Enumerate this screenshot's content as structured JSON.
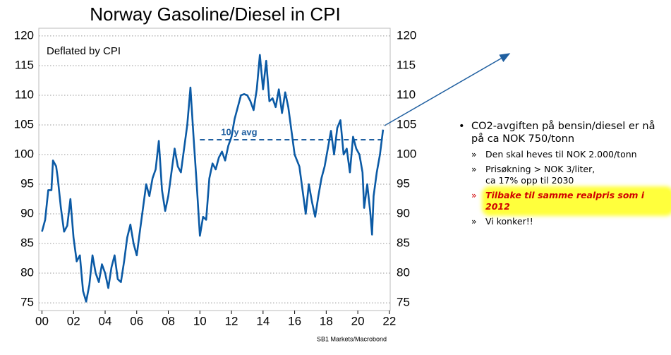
{
  "chart_data": {
    "type": "line",
    "title": "Norway Gasoline/Diesel in CPI",
    "subtitle": "Deflated by CPI",
    "source": "SB1 Markets/Macrobond",
    "x": [
      2000.0,
      2000.2,
      2000.4,
      2000.6,
      2000.7,
      2000.9,
      2001.0,
      2001.2,
      2001.4,
      2001.6,
      2001.8,
      2002.0,
      2002.2,
      2002.4,
      2002.6,
      2002.8,
      2003.0,
      2003.2,
      2003.4,
      2003.6,
      2003.8,
      2004.0,
      2004.2,
      2004.4,
      2004.6,
      2004.8,
      2005.0,
      2005.2,
      2005.4,
      2005.6,
      2005.8,
      2006.0,
      2006.2,
      2006.4,
      2006.6,
      2006.8,
      2007.0,
      2007.2,
      2007.4,
      2007.6,
      2007.8,
      2008.0,
      2008.2,
      2008.4,
      2008.6,
      2008.8,
      2009.0,
      2009.2,
      2009.4,
      2009.6,
      2009.8,
      2010.0,
      2010.2,
      2010.4,
      2010.6,
      2010.8,
      2011.0,
      2011.2,
      2011.4,
      2011.6,
      2011.8,
      2012.0,
      2012.2,
      2012.4,
      2012.6,
      2012.8,
      2013.0,
      2013.2,
      2013.4,
      2013.6,
      2013.8,
      2014.0,
      2014.2,
      2014.4,
      2014.6,
      2014.8,
      2015.0,
      2015.2,
      2015.4,
      2015.6,
      2015.8,
      2016.0,
      2016.3,
      2016.5,
      2016.7,
      2016.9,
      2017.1,
      2017.3,
      2017.5,
      2017.7,
      2017.9,
      2018.1,
      2018.3,
      2018.5,
      2018.7,
      2018.9,
      2019.1,
      2019.3,
      2019.5,
      2019.7,
      2019.9,
      2020.1,
      2020.3,
      2020.4,
      2020.6,
      2020.8,
      2020.9,
      2021.0,
      2021.2,
      2021.4,
      2021.6
    ],
    "series": [
      {
        "name": "Gasoline/Diesel",
        "color": "#0b5aa5",
        "values": [
          87,
          89,
          94,
          94,
          99,
          98,
          96,
          91,
          87,
          88,
          92.5,
          86,
          82,
          83,
          77,
          75.2,
          78,
          83,
          80,
          78.5,
          81.5,
          80,
          77.5,
          81,
          83,
          79,
          78.5,
          82,
          86,
          88.2,
          85,
          83,
          87,
          91,
          95,
          93,
          96,
          97.5,
          102.3,
          94,
          90.5,
          93,
          97,
          101,
          98,
          97,
          101,
          105,
          111.3,
          103,
          95,
          86.3,
          89.5,
          89,
          96,
          98.5,
          97.5,
          99.5,
          100.5,
          99,
          101.5,
          103,
          106,
          108,
          110,
          110.2,
          110,
          109,
          107.5,
          111,
          116.8,
          111,
          115.8,
          109,
          109.5,
          108,
          111,
          107,
          110.5,
          108,
          104,
          100,
          98,
          94,
          90,
          95,
          92,
          89.5,
          93,
          96,
          98,
          101,
          104,
          100,
          104.5,
          105.8,
          100,
          101,
          97,
          103,
          101,
          100,
          97,
          91,
          95,
          90,
          86.5,
          93,
          97,
          100,
          104.2
        ]
      }
    ],
    "reference_line": {
      "label": "10 y avg",
      "value": 102.5,
      "x": [
        2010,
        2021.8
      ]
    },
    "xlim": [
      1999.8,
      2022.05
    ],
    "xticks": [
      {
        "value": 2000,
        "label": "00"
      },
      {
        "value": 2002,
        "label": "02"
      },
      {
        "value": 2004,
        "label": "04"
      },
      {
        "value": 2006,
        "label": "06"
      },
      {
        "value": 2008,
        "label": "08"
      },
      {
        "value": 2010,
        "label": "10"
      },
      {
        "value": 2012,
        "label": "12"
      },
      {
        "value": 2014,
        "label": "14"
      },
      {
        "value": 2016,
        "label": "16"
      },
      {
        "value": 2018,
        "label": "18"
      },
      {
        "value": 2020,
        "label": "20"
      },
      {
        "value": 2022,
        "label": "22"
      }
    ],
    "ylim": [
      73.7,
      121.3
    ],
    "yticks": [
      75,
      80,
      85,
      90,
      95,
      100,
      105,
      110,
      115,
      120
    ],
    "grid": true,
    "right_axis": true
  },
  "notes": {
    "bullet": [
      "CO2-avgiften på bensin/diesel er nå",
      "på ca NOK 750/tonn"
    ],
    "subbullets": [
      [
        "Den skal heves til NOK 2.000/tonn"
      ],
      [
        "Prisøkning > NOK 3/liter,",
        "ca 17% opp til 2030"
      ],
      [
        "Tilbake til samme realpris som i 2012"
      ],
      [
        "Vi konker!!"
      ]
    ],
    "highlight": 2
  }
}
